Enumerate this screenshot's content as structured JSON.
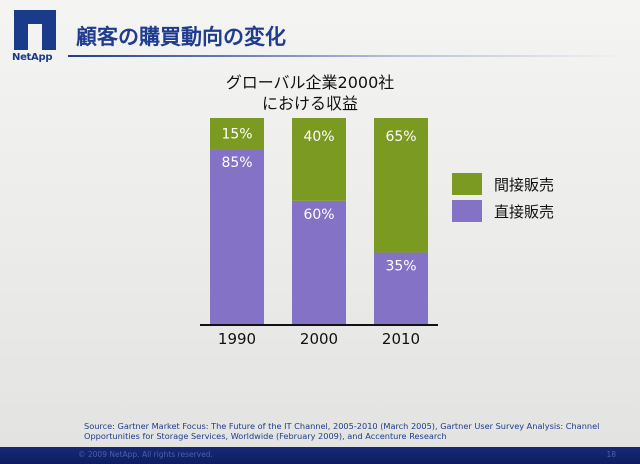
{
  "header": {
    "logo_text": "NetApp",
    "title": "顧客の購買動向の変化"
  },
  "colors": {
    "title_blue": "#1f3c8e",
    "indirect": "#7b9a22",
    "direct": "#8472c6",
    "footer": "#13257a"
  },
  "chart_data": {
    "type": "bar",
    "stacked": true,
    "title": [
      "グローバル企業2000社",
      "における収益"
    ],
    "categories": [
      "1990",
      "2000",
      "2010"
    ],
    "series": [
      {
        "name": "直接販売",
        "values": [
          85,
          60,
          35
        ],
        "labels": [
          "85%",
          "60%",
          "35%"
        ],
        "color": "#8472c6"
      },
      {
        "name": "間接販売",
        "values": [
          15,
          40,
          65
        ],
        "labels": [
          "15%",
          "40%",
          "65%"
        ],
        "color": "#7b9a22"
      }
    ],
    "ylim": [
      0,
      100
    ],
    "xlabel": "",
    "ylabel": "",
    "legend": "right",
    "grid": false
  },
  "source": "Source: Gartner Market Focus: The Future of the IT Channel, 2005-2010 (March 2005), Gartner User Survey Analysis: Channel Opportunities for Storage Services, Worldwide (February 2009), and Accenture Research",
  "footer": {
    "copyright": "© 2009 NetApp. All rights reserved.",
    "page_number": "18"
  }
}
